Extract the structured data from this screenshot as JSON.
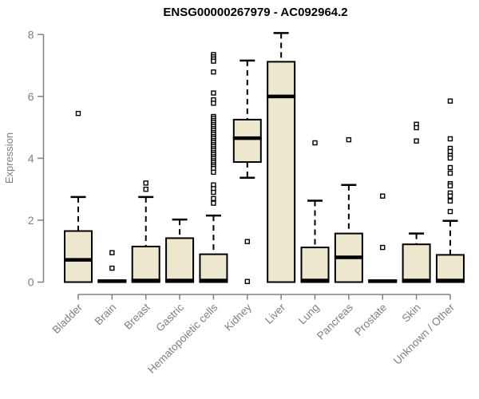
{
  "title": "ENSG00000267979 - AC092964.2",
  "colors": {
    "background": "#FFFFFF",
    "box_fill": "#EDE7CE",
    "box_stroke": "#000000",
    "median": "#000000",
    "whisker": "#000000",
    "outlier_fill": "#FFFFFF",
    "axis": "#808080",
    "tick_label": "#7F7F7F",
    "title_color": "#000000"
  },
  "chart_data": {
    "type": "boxplot",
    "title": "ENSG00000267979 - AC092964.2",
    "xlabel": "",
    "ylabel": "Expression",
    "ylim": [
      0,
      8
    ],
    "yticks": [
      0,
      2,
      4,
      6,
      8
    ],
    "grid": false,
    "legend": "none",
    "categories": [
      "Bladder",
      "Brain",
      "Breast",
      "Gastric",
      "Hematopoietic cells",
      "Kidney",
      "Liver",
      "Lung",
      "Pancreas",
      "Prostate",
      "Skin",
      "Unknown / Other"
    ],
    "series": [
      {
        "name": "Bladder",
        "min": 0,
        "q1": 0,
        "median": 0.72,
        "q3": 1.65,
        "max": 2.75,
        "outliers": [
          5.45
        ]
      },
      {
        "name": "Brain",
        "min": 0,
        "q1": 0,
        "median": 0.03,
        "q3": 0.06,
        "max": 0.06,
        "outliers": [
          0.95,
          0.45
        ]
      },
      {
        "name": "Breast",
        "min": 0,
        "q1": 0,
        "median": 0.05,
        "q3": 1.15,
        "max": 2.75,
        "outliers": [
          3.2,
          3.0
        ]
      },
      {
        "name": "Gastric",
        "min": 0,
        "q1": 0,
        "median": 0.05,
        "q3": 1.42,
        "max": 2.02,
        "outliers": []
      },
      {
        "name": "Hematopoietic cells",
        "min": 0,
        "q1": 0,
        "median": 0.05,
        "q3": 0.9,
        "max": 2.15,
        "outliers": [
          7.35,
          7.28,
          7.21,
          7.14,
          6.79,
          6.11,
          5.89,
          5.78,
          5.35,
          5.29,
          5.22,
          5.16,
          5.09,
          5.03,
          4.96,
          4.9,
          4.83,
          4.77,
          4.7,
          4.64,
          4.57,
          4.51,
          4.44,
          4.38,
          4.31,
          4.25,
          4.18,
          4.12,
          4.05,
          3.99,
          3.92,
          3.86,
          3.79,
          3.73,
          3.67,
          3.55,
          3.14,
          3.02,
          2.9,
          2.7,
          2.55
        ]
      },
      {
        "name": "Kidney",
        "min": 3.37,
        "q1": 3.88,
        "median": 4.65,
        "q3": 5.25,
        "max": 7.16,
        "outliers": [
          1.31,
          0.02
        ]
      },
      {
        "name": "Liver",
        "min": 0,
        "q1": 0,
        "median": 6.0,
        "q3": 7.12,
        "max": 8.05,
        "outliers": []
      },
      {
        "name": "Lung",
        "min": 0,
        "q1": 0,
        "median": 0.05,
        "q3": 1.12,
        "max": 2.63,
        "outliers": [
          4.5
        ]
      },
      {
        "name": "Pancreas",
        "min": 0,
        "q1": 0,
        "median": 0.8,
        "q3": 1.57,
        "max": 3.14,
        "outliers": [
          4.6
        ]
      },
      {
        "name": "Prostate",
        "min": 0,
        "q1": 0,
        "median": 0.03,
        "q3": 0.06,
        "max": 0.06,
        "outliers": [
          2.78,
          1.12
        ]
      },
      {
        "name": "Skin",
        "min": 0,
        "q1": 0,
        "median": 0.05,
        "q3": 1.22,
        "max": 1.57,
        "outliers": [
          5.1,
          4.99,
          4.56
        ]
      },
      {
        "name": "Unknown / Other",
        "min": 0,
        "q1": 0,
        "median": 0.05,
        "q3": 0.88,
        "max": 1.98,
        "outliers": [
          5.85,
          4.63,
          4.32,
          4.22,
          4.09,
          4.01,
          3.7,
          3.52,
          3.18,
          3.11,
          2.88,
          2.78,
          2.62,
          2.28
        ]
      }
    ]
  }
}
